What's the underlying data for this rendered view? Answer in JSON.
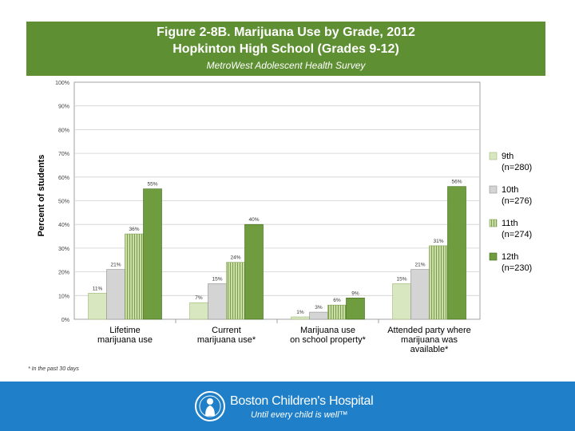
{
  "header": {
    "title_line1": "Figure 2-8B. Marijuana Use by Grade, 2012",
    "title_line2": "Hopkinton High School (Grades 9-12)",
    "subtitle": "MetroWest Adolescent Health Survey"
  },
  "footnote": "* In the past 30 days",
  "brand": {
    "name": "Boston Children's Hospital",
    "tagline": "Until every child is well™"
  },
  "colors": {
    "header_green": "#5f8f33",
    "footer_blue": "#1f80c9",
    "grade9": "#d8e7bf",
    "grade10": "#d4d4d4",
    "grade11": "#c9dea4",
    "grade12": "#6f9c3f"
  },
  "chart_data": {
    "type": "bar",
    "ylabel": "Percent of students",
    "ylim": [
      0,
      100
    ],
    "yticks": [
      "0%",
      "10%",
      "20%",
      "30%",
      "40%",
      "50%",
      "60%",
      "70%",
      "80%",
      "90%",
      "100%"
    ],
    "categories": [
      [
        "Lifetime",
        "marijuana use"
      ],
      [
        "Current",
        "marijuana use*"
      ],
      [
        "Marijuana use",
        "on school property*"
      ],
      [
        "Attended party where",
        "marijuana was",
        "available*"
      ]
    ],
    "series": [
      {
        "name": "9th",
        "n": "(n=280)",
        "values": [
          11,
          7,
          1,
          15
        ],
        "labels": [
          "11%",
          "7%",
          "1%",
          "15%"
        ]
      },
      {
        "name": "10th",
        "n": "(n=276)",
        "values": [
          21,
          15,
          3,
          21
        ],
        "labels": [
          "21%",
          "15%",
          "3%",
          "21%"
        ]
      },
      {
        "name": "11th",
        "n": "(n=274)",
        "values": [
          36,
          24,
          6,
          31
        ],
        "labels": [
          "36%",
          "24%",
          "6%",
          "31%"
        ]
      },
      {
        "name": "12th",
        "n": "(n=230)",
        "values": [
          55,
          40,
          9,
          56
        ],
        "labels": [
          "55%",
          "40%",
          "9%",
          "56%"
        ]
      }
    ]
  }
}
